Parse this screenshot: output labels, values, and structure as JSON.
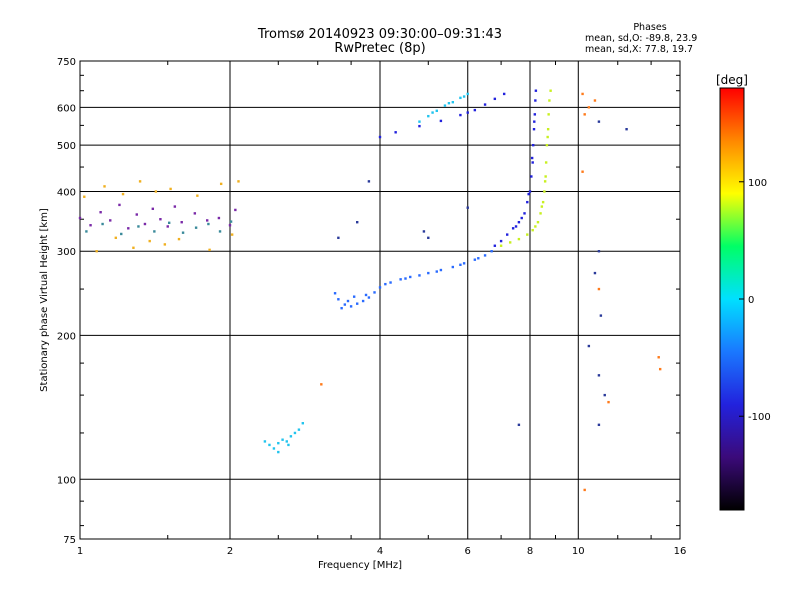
{
  "header": {
    "title_line1": "Tromsø 20140923 09:30:00–09:31:43",
    "title_line2": "RwPretec (8p)"
  },
  "phases_box": {
    "title": "Phases",
    "line_o": "mean, sd,O: -89.8, 23.9",
    "line_x": "mean, sd,X:  77.8, 19.7"
  },
  "colorbar": {
    "unit_label": "[deg]",
    "ticks": [
      {
        "value": 100,
        "label": "100"
      },
      {
        "value": 0,
        "label": "0"
      },
      {
        "value": -100,
        "label": "-100"
      }
    ],
    "range": [
      -180,
      180
    ],
    "colormap": [
      "#000000",
      "#3b0a7a",
      "#2222dd",
      "#1a78ff",
      "#00e0ff",
      "#00ff66",
      "#ffff00",
      "#ff8800",
      "#ff0000"
    ]
  },
  "chart_data": {
    "type": "scatter",
    "xlabel": "Frequency [MHz]",
    "ylabel": "Stationary phase Virtual Height [km]",
    "x_scale": "log",
    "y_scale": "log",
    "xlim": [
      1,
      16
    ],
    "ylim": [
      75,
      750
    ],
    "grid": true,
    "x_ticks": [
      {
        "value": 1,
        "label": "1"
      },
      {
        "value": 2,
        "label": "2"
      },
      {
        "value": 4,
        "label": "4"
      },
      {
        "value": 6,
        "label": "6"
      },
      {
        "value": 8,
        "label": "8"
      },
      {
        "value": 10,
        "label": "10"
      },
      {
        "value": 16,
        "label": "16"
      }
    ],
    "y_ticks": [
      {
        "value": 75,
        "label": "75"
      },
      {
        "value": 100,
        "label": "100"
      },
      {
        "value": 200,
        "label": "200"
      },
      {
        "value": 300,
        "label": "300"
      },
      {
        "value": 400,
        "label": "400"
      },
      {
        "value": 500,
        "label": "500"
      },
      {
        "value": 600,
        "label": "600"
      },
      {
        "value": 750,
        "label": "750"
      }
    ],
    "series": [
      {
        "color": "#2a6bff",
        "points": [
          [
            3.25,
            245
          ],
          [
            3.3,
            238
          ],
          [
            3.4,
            232
          ],
          [
            3.5,
            230
          ],
          [
            3.6,
            233
          ],
          [
            3.7,
            236
          ],
          [
            3.8,
            240
          ],
          [
            3.9,
            246
          ],
          [
            4.0,
            252
          ],
          [
            4.2,
            258
          ],
          [
            4.4,
            262
          ],
          [
            4.6,
            265
          ],
          [
            4.8,
            267
          ],
          [
            5.0,
            270
          ],
          [
            5.3,
            274
          ],
          [
            5.6,
            278
          ],
          [
            5.9,
            283
          ],
          [
            6.2,
            288
          ],
          [
            6.5,
            294
          ],
          [
            6.7,
            300
          ],
          [
            3.35,
            228
          ],
          [
            3.45,
            236
          ],
          [
            3.55,
            241
          ],
          [
            3.75,
            243
          ],
          [
            4.1,
            256
          ],
          [
            4.5,
            263
          ],
          [
            5.2,
            272
          ],
          [
            5.8,
            281
          ],
          [
            6.3,
            290
          ]
        ]
      },
      {
        "color": "#2222dd",
        "points": [
          [
            6.8,
            308
          ],
          [
            7.0,
            315
          ],
          [
            7.2,
            325
          ],
          [
            7.4,
            335
          ],
          [
            7.6,
            345
          ],
          [
            7.8,
            360
          ],
          [
            7.9,
            380
          ],
          [
            8.0,
            400
          ],
          [
            8.05,
            430
          ],
          [
            8.1,
            460
          ],
          [
            8.12,
            500
          ],
          [
            8.15,
            540
          ],
          [
            8.18,
            580
          ],
          [
            8.2,
            620
          ],
          [
            8.22,
            650
          ],
          [
            7.5,
            338
          ],
          [
            7.7,
            352
          ],
          [
            7.95,
            395
          ],
          [
            8.08,
            470
          ],
          [
            8.16,
            560
          ],
          [
            4.0,
            520
          ],
          [
            4.3,
            532
          ],
          [
            4.8,
            548
          ],
          [
            5.3,
            562
          ],
          [
            5.8,
            578
          ],
          [
            6.2,
            592
          ],
          [
            6.5,
            608
          ],
          [
            6.8,
            625
          ],
          [
            7.1,
            640
          ],
          [
            6.0,
            585
          ]
        ]
      },
      {
        "color": "#c8f020",
        "points": [
          [
            7.0,
            308
          ],
          [
            7.3,
            313
          ],
          [
            7.6,
            318
          ],
          [
            7.9,
            325
          ],
          [
            8.1,
            332
          ],
          [
            8.3,
            345
          ],
          [
            8.4,
            360
          ],
          [
            8.5,
            380
          ],
          [
            8.55,
            400
          ],
          [
            8.6,
            430
          ],
          [
            8.62,
            460
          ],
          [
            8.65,
            500
          ],
          [
            8.7,
            540
          ],
          [
            8.72,
            580
          ],
          [
            8.75,
            620
          ],
          [
            8.8,
            650
          ],
          [
            8.2,
            338
          ],
          [
            8.45,
            372
          ],
          [
            8.58,
            420
          ],
          [
            8.68,
            520
          ]
        ]
      },
      {
        "color": "#22c4ee",
        "points": [
          [
            4.8,
            560
          ],
          [
            5.0,
            575
          ],
          [
            5.2,
            590
          ],
          [
            5.4,
            605
          ],
          [
            5.6,
            615
          ],
          [
            5.8,
            628
          ],
          [
            6.0,
            640
          ],
          [
            5.1,
            585
          ],
          [
            5.5,
            612
          ],
          [
            5.9,
            632
          ],
          [
            2.35,
            120
          ],
          [
            2.4,
            118
          ],
          [
            2.45,
            116
          ],
          [
            2.5,
            119
          ],
          [
            2.55,
            121
          ],
          [
            2.6,
            120
          ],
          [
            2.65,
            123
          ],
          [
            2.7,
            125
          ],
          [
            2.75,
            127
          ],
          [
            2.8,
            131
          ],
          [
            2.5,
            114
          ],
          [
            2.62,
            118
          ]
        ]
      },
      {
        "color": "#7a2aa8",
        "points": [
          [
            1.0,
            352
          ],
          [
            1.05,
            340
          ],
          [
            1.1,
            362
          ],
          [
            1.15,
            348
          ],
          [
            1.2,
            375
          ],
          [
            1.25,
            335
          ],
          [
            1.3,
            358
          ],
          [
            1.35,
            342
          ],
          [
            1.4,
            368
          ],
          [
            1.45,
            350
          ],
          [
            1.5,
            338
          ],
          [
            1.55,
            372
          ],
          [
            1.6,
            345
          ],
          [
            1.7,
            360
          ],
          [
            1.8,
            348
          ],
          [
            1.9,
            352
          ],
          [
            2.0,
            340
          ],
          [
            2.05,
            366
          ]
        ]
      },
      {
        "color": "#f0b020",
        "points": [
          [
            1.02,
            390
          ],
          [
            1.08,
            300
          ],
          [
            1.12,
            410
          ],
          [
            1.18,
            320
          ],
          [
            1.22,
            395
          ],
          [
            1.28,
            305
          ],
          [
            1.32,
            420
          ],
          [
            1.38,
            315
          ],
          [
            1.42,
            400
          ],
          [
            1.48,
            310
          ],
          [
            1.52,
            405
          ],
          [
            1.58,
            318
          ],
          [
            1.72,
            392
          ],
          [
            1.82,
            302
          ],
          [
            1.92,
            415
          ],
          [
            2.02,
            325
          ],
          [
            2.08,
            420
          ]
        ]
      },
      {
        "color": "#3a8a9a",
        "points": [
          [
            1.03,
            330
          ],
          [
            1.11,
            342
          ],
          [
            1.21,
            326
          ],
          [
            1.31,
            338
          ],
          [
            1.41,
            330
          ],
          [
            1.51,
            344
          ],
          [
            1.61,
            328
          ],
          [
            1.71,
            336
          ],
          [
            1.81,
            342
          ],
          [
            1.91,
            330
          ],
          [
            2.01,
            346
          ]
        ]
      },
      {
        "color": "#ff7a1a",
        "points": [
          [
            10.2,
            640
          ],
          [
            10.3,
            580
          ],
          [
            10.5,
            600
          ],
          [
            10.8,
            620
          ],
          [
            10.2,
            440
          ],
          [
            10.3,
            95
          ],
          [
            11.0,
            250
          ],
          [
            14.5,
            180
          ],
          [
            14.6,
            170
          ],
          [
            3.05,
            158
          ],
          [
            11.5,
            145
          ]
        ]
      },
      {
        "color": "#2a3a9a",
        "points": [
          [
            11.0,
            300
          ],
          [
            10.8,
            270
          ],
          [
            11.1,
            220
          ],
          [
            10.5,
            190
          ],
          [
            11.0,
            165
          ],
          [
            11.3,
            150
          ],
          [
            11.0,
            130
          ],
          [
            7.6,
            130
          ],
          [
            12.5,
            540
          ],
          [
            11.0,
            560
          ],
          [
            3.3,
            320
          ],
          [
            3.6,
            345
          ],
          [
            4.9,
            330
          ],
          [
            5.0,
            320
          ],
          [
            6.0,
            370
          ],
          [
            3.8,
            420
          ]
        ]
      }
    ]
  }
}
